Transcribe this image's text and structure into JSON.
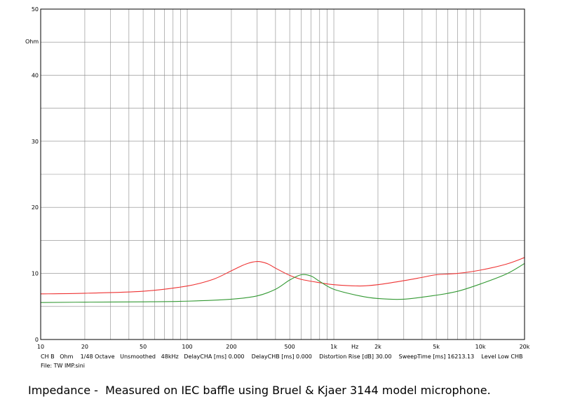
{
  "chart_data": {
    "type": "line",
    "x_scale": "log",
    "y_unit": "Ohm",
    "x_unit": "Hz",
    "xlim": [
      10,
      20000
    ],
    "ylim": [
      0,
      50
    ],
    "y_major_ticks": [
      0,
      10,
      20,
      30,
      40,
      50
    ],
    "y_minor_ticks": [
      5,
      15,
      25,
      35,
      45
    ],
    "x_labels": [
      {
        "value": 10,
        "text": "10"
      },
      {
        "value": 20,
        "text": "20"
      },
      {
        "value": 50,
        "text": "50"
      },
      {
        "value": 100,
        "text": "100"
      },
      {
        "value": 200,
        "text": "200"
      },
      {
        "value": 500,
        "text": "500"
      },
      {
        "value": 1000,
        "text": "1k"
      },
      {
        "value": 2000,
        "text": "2k"
      },
      {
        "value": 5000,
        "text": "5k"
      },
      {
        "value": 10000,
        "text": "10k"
      },
      {
        "value": 20000,
        "text": "20k"
      }
    ],
    "grid": true,
    "series": [
      {
        "color": "#ee3333",
        "x": [
          10,
          20,
          50,
          100,
          150,
          200,
          250,
          300,
          350,
          400,
          500,
          600,
          800,
          1000,
          1500,
          2000,
          3000,
          4000,
          5000,
          7000,
          10000,
          15000,
          20000
        ],
        "y": [
          6.9,
          7.0,
          7.3,
          8.1,
          9.1,
          10.4,
          11.4,
          11.8,
          11.5,
          10.8,
          9.7,
          9.1,
          8.6,
          8.3,
          8.1,
          8.3,
          8.9,
          9.4,
          9.8,
          10.0,
          10.5,
          11.4,
          12.4
        ]
      },
      {
        "color": "#339933",
        "x": [
          10,
          20,
          50,
          100,
          200,
          300,
          400,
          500,
          600,
          700,
          800,
          1000,
          1500,
          2000,
          3000,
          5000,
          7000,
          10000,
          15000,
          20000
        ],
        "y": [
          5.6,
          5.65,
          5.7,
          5.8,
          6.1,
          6.6,
          7.6,
          9.0,
          9.8,
          9.6,
          8.8,
          7.6,
          6.6,
          6.2,
          6.1,
          6.7,
          7.3,
          8.4,
          9.9,
          11.5
        ]
      }
    ]
  },
  "footer": {
    "line1": "CH B   Ohm    1/48 Octave   Unsmoothed   48kHz   DelayCHA [ms] 0.000    DelayCHB [ms] 0.000    Distortion Rise [dB] 30.00    SweepTime [ms] 16213.13    Level Low CHB",
    "line2": "File: TW IMP.sini"
  },
  "caption": "Impedance -  Measured on IEC baffle using Bruel & Kjaer 3144 model microphone."
}
